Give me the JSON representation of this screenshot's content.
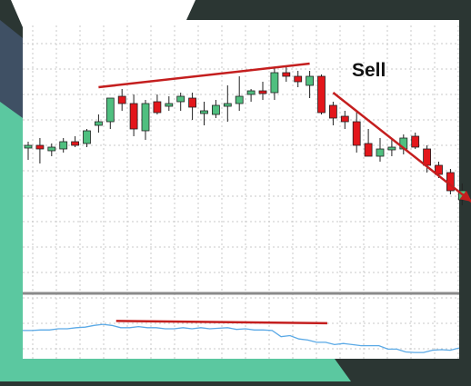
{
  "annotation": {
    "label": "Sell"
  },
  "colors": {
    "background": "#2b3633",
    "frame_teal": "#5bc8a0",
    "frame_slate": "#3f5064",
    "chart_bg": "#ffffff",
    "grid": "#c8c8c8",
    "bull": "#4fbf7f",
    "bear": "#e3161b",
    "wick": "#222222",
    "trendline": "#c41e1e",
    "indicator_line": "#5aa9e6",
    "separator": "#8a8a8a"
  },
  "chart_data": [
    {
      "type": "candlestick",
      "title": "",
      "xlabel": "",
      "ylabel": "",
      "ylim": [
        0,
        100
      ],
      "grid": true,
      "candles": [
        {
          "o": 50,
          "h": 53,
          "l": 43,
          "c": 51
        },
        {
          "o": 51,
          "h": 55,
          "l": 41,
          "c": 49
        },
        {
          "o": 48,
          "h": 52,
          "l": 45,
          "c": 50
        },
        {
          "o": 49,
          "h": 55,
          "l": 47,
          "c": 53
        },
        {
          "o": 53,
          "h": 56,
          "l": 50,
          "c": 51
        },
        {
          "o": 52,
          "h": 60,
          "l": 50,
          "c": 59
        },
        {
          "o": 62,
          "h": 68,
          "l": 58,
          "c": 64
        },
        {
          "o": 64,
          "h": 76,
          "l": 60,
          "c": 77
        },
        {
          "o": 78,
          "h": 82,
          "l": 70,
          "c": 74
        },
        {
          "o": 74,
          "h": 79,
          "l": 56,
          "c": 60
        },
        {
          "o": 59,
          "h": 76,
          "l": 54,
          "c": 74
        },
        {
          "o": 75,
          "h": 79,
          "l": 68,
          "c": 69
        },
        {
          "o": 74,
          "h": 78,
          "l": 70,
          "c": 74
        },
        {
          "o": 75,
          "h": 80,
          "l": 70,
          "c": 78
        },
        {
          "o": 77,
          "h": 80,
          "l": 65,
          "c": 72
        },
        {
          "o": 70,
          "h": 75,
          "l": 62,
          "c": 70
        },
        {
          "o": 68,
          "h": 76,
          "l": 66,
          "c": 73
        },
        {
          "o": 74,
          "h": 84,
          "l": 64,
          "c": 74
        },
        {
          "o": 74,
          "h": 89,
          "l": 70,
          "c": 78
        },
        {
          "o": 79,
          "h": 82,
          "l": 75,
          "c": 81
        },
        {
          "o": 81,
          "h": 86,
          "l": 76,
          "c": 80
        },
        {
          "o": 80,
          "h": 94,
          "l": 76,
          "c": 91
        },
        {
          "o": 91,
          "h": 94,
          "l": 86,
          "c": 89
        },
        {
          "o": 89,
          "h": 92,
          "l": 83,
          "c": 86
        },
        {
          "o": 84,
          "h": 92,
          "l": 77,
          "c": 89
        },
        {
          "o": 89,
          "h": 90,
          "l": 68,
          "c": 69
        },
        {
          "o": 73,
          "h": 75,
          "l": 62,
          "c": 66
        },
        {
          "o": 67,
          "h": 70,
          "l": 60,
          "c": 64
        },
        {
          "o": 64,
          "h": 70,
          "l": 47,
          "c": 51
        },
        {
          "o": 52,
          "h": 60,
          "l": 45,
          "c": 45
        },
        {
          "o": 45,
          "h": 55,
          "l": 42,
          "c": 49
        },
        {
          "o": 49,
          "h": 55,
          "l": 45,
          "c": 50
        },
        {
          "o": 49,
          "h": 57,
          "l": 46,
          "c": 55
        },
        {
          "o": 56,
          "h": 58,
          "l": 49,
          "c": 50
        },
        {
          "o": 49,
          "h": 51,
          "l": 36,
          "c": 40
        },
        {
          "o": 40,
          "h": 42,
          "l": 33,
          "c": 35
        },
        {
          "o": 36,
          "h": 38,
          "l": 24,
          "c": 26
        },
        {
          "o": 21,
          "h": 30,
          "l": 18,
          "c": 26
        }
      ],
      "trendlines": [
        {
          "x1": 6,
          "y1": 83,
          "x2": 24,
          "y2": 96
        },
        {
          "x1": 26,
          "y1": 80,
          "x2": 37.8,
          "y2": 20
        }
      ]
    },
    {
      "type": "line",
      "title": "",
      "xlabel": "",
      "ylabel": "",
      "ylim": [
        0,
        100
      ],
      "values": [
        55,
        55,
        56,
        56,
        58,
        58,
        60,
        61,
        64,
        66,
        64,
        60,
        60,
        62,
        60,
        60,
        58,
        58,
        60,
        58,
        60,
        58,
        59,
        60,
        57,
        58,
        56,
        56,
        55,
        44,
        46,
        40,
        38,
        34,
        34,
        30,
        32,
        30,
        28,
        28,
        28,
        22,
        22,
        17,
        16,
        16,
        20,
        21,
        20,
        24
      ],
      "trendlines": [
        {
          "x1": 7.5,
          "y1": 72,
          "x2": 25.5,
          "y2": 68
        }
      ]
    }
  ]
}
